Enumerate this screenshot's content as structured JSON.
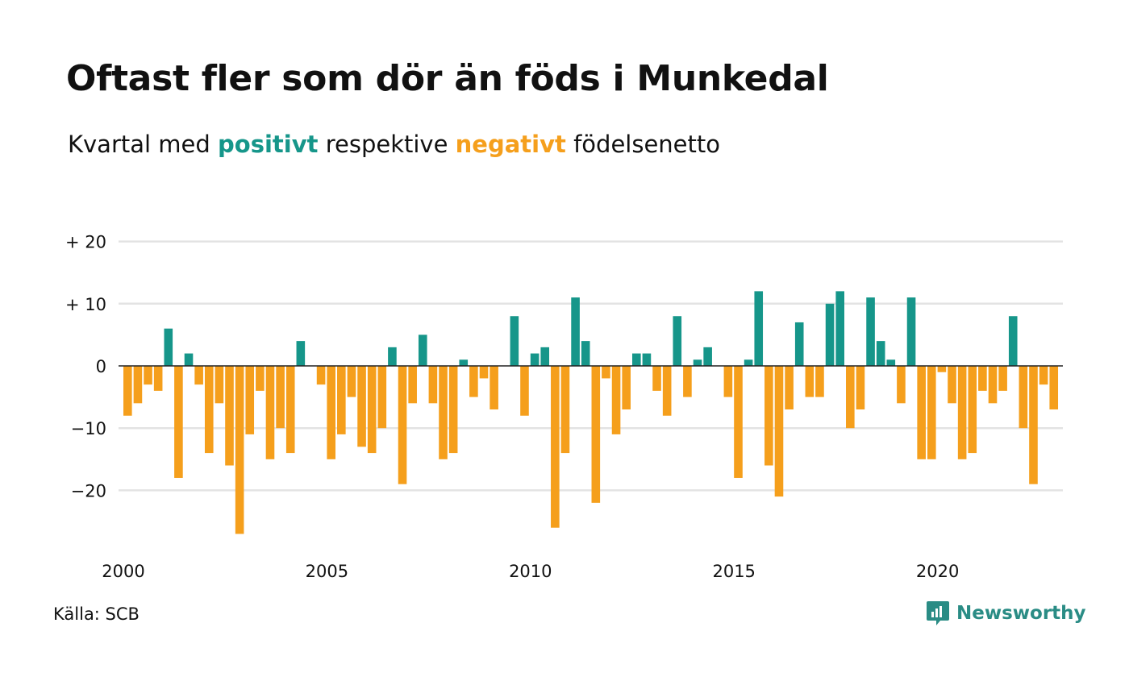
{
  "title": "Oftast fler som dör än föds i Munkedal",
  "subtitle": {
    "prefix": "Kvartal med ",
    "positive": "positivt",
    "middle": " respektive ",
    "negative": "negativt",
    "suffix": " födelsenetto"
  },
  "source": "Källa: SCB",
  "brand": {
    "name": "Newsworthy",
    "icon": "newsworthy-logo-icon"
  },
  "colors": {
    "positive": "#16968a",
    "negative": "#f59f1c",
    "grid": "#e3e3e3",
    "zero": "#222222"
  },
  "chart_data": {
    "type": "bar",
    "title": "Oftast fler som dör än föds i Munkedal",
    "subtitle": "Kvartal med positivt respektive negativt födelsenetto",
    "xlabel": "",
    "ylabel": "",
    "x_start_year": 2000,
    "periods_per_year": 4,
    "x_ticks": [
      2000,
      2005,
      2010,
      2015,
      2020
    ],
    "y_ticks": [
      20,
      10,
      0,
      -10,
      -20
    ],
    "y_tick_labels": [
      "+ 20",
      "+ 10",
      "0",
      "−10",
      "−20"
    ],
    "ylim": [
      -29,
      21
    ],
    "grid": true,
    "values": [
      -8,
      -6,
      -3,
      -4,
      6,
      -18,
      2,
      -3,
      -14,
      -6,
      -16,
      -27,
      -11,
      -4,
      -15,
      -10,
      -14,
      4,
      0,
      -3,
      -15,
      -11,
      -5,
      -13,
      -14,
      -10,
      3,
      -19,
      -6,
      5,
      -6,
      -15,
      -14,
      1,
      -5,
      -2,
      -7,
      0,
      8,
      -8,
      2,
      3,
      -26,
      -14,
      11,
      4,
      -22,
      -2,
      -11,
      -7,
      2,
      2,
      -4,
      -8,
      8,
      -5,
      1,
      3,
      0,
      -5,
      -18,
      1,
      12,
      -16,
      -21,
      -7,
      7,
      -5,
      -5,
      10,
      12,
      -10,
      -7,
      11,
      4,
      1,
      -6,
      11,
      -15,
      -15,
      -1,
      -6,
      -15,
      -14,
      -4,
      -6,
      -4,
      8,
      -10,
      -19,
      -3,
      -7
    ]
  }
}
